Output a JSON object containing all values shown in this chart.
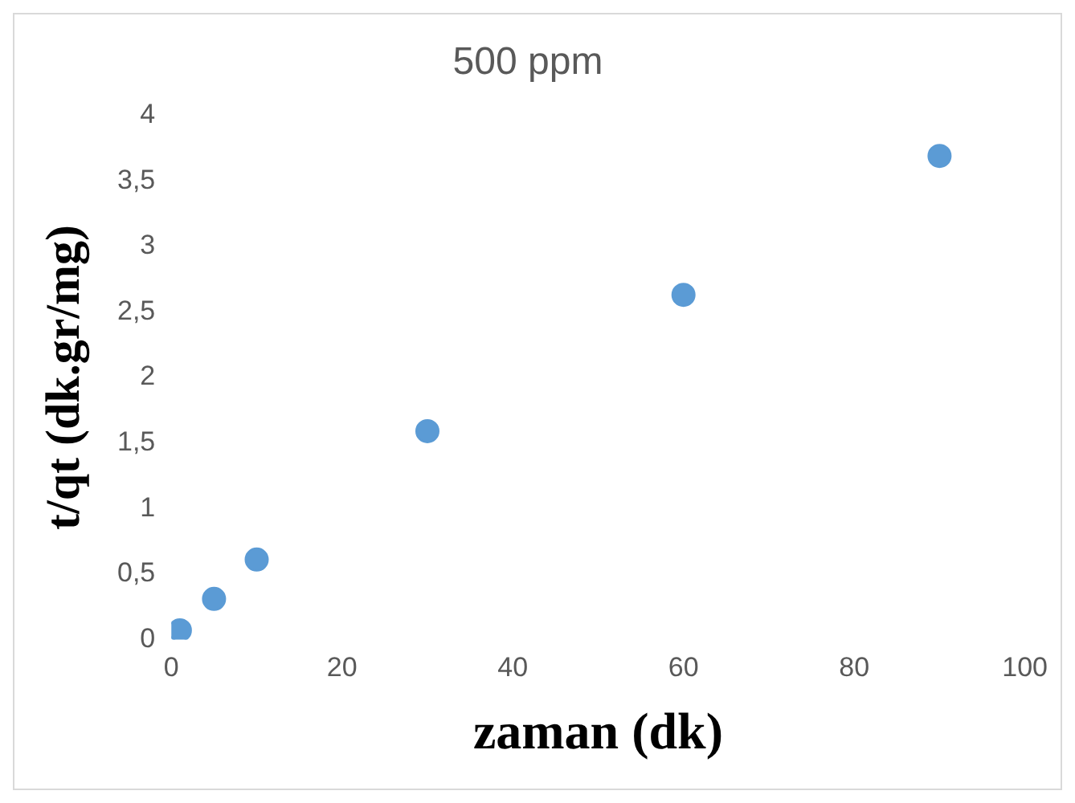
{
  "chart_data": {
    "type": "scatter",
    "title": "500 ppm",
    "xlabel": "zaman (dk)",
    "ylabel": "t/qt (dk.gr/mg)",
    "x": [
      1,
      5,
      10,
      30,
      60,
      90
    ],
    "series": [
      {
        "color": "#5b9bd5",
        "values": [
          0.07,
          0.31,
          0.61,
          1.59,
          2.63,
          3.69
        ]
      }
    ],
    "xlim": [
      0,
      100
    ],
    "xticks": [
      0,
      20,
      40,
      60,
      80,
      100
    ],
    "ylim": [
      0,
      4
    ],
    "yticks": [
      0,
      {
        "value": 0.5,
        "label": "0,5"
      },
      1,
      {
        "value": 1.5,
        "label": "1,5"
      },
      2,
      {
        "value": 2.5,
        "label": "2,5"
      },
      3,
      {
        "value": 3.5,
        "label": "3,5"
      },
      4
    ],
    "grid": false,
    "legend": false,
    "marker": "circle"
  }
}
